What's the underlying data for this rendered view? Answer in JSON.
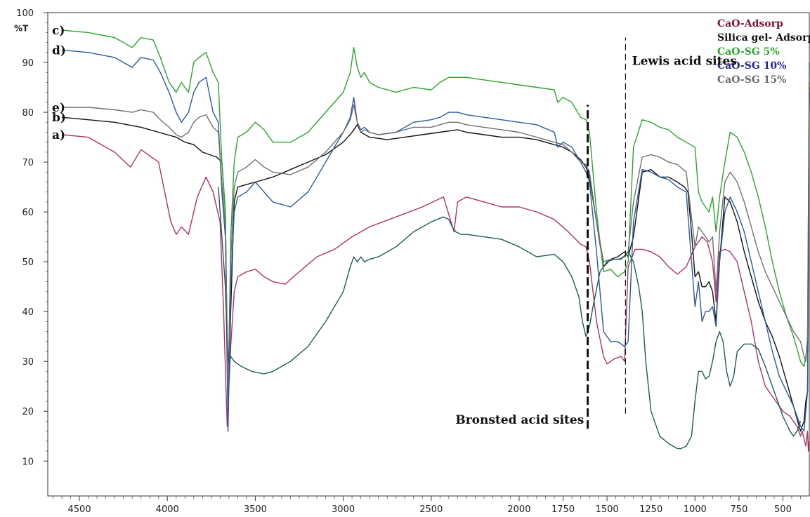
{
  "chart_data": {
    "type": "line",
    "title": "",
    "xlabel": "",
    "ylabel": "%T",
    "xlim": [
      4680,
      350
    ],
    "ylim": [
      3,
      100
    ],
    "x_reversed": true,
    "grid": false,
    "legend_position": "top-right",
    "x_ticks": [
      4500,
      4000,
      3500,
      3000,
      2500,
      2000,
      1750,
      1500,
      1250,
      1000,
      750,
      500
    ],
    "x_tick_labels": [
      "4500",
      "4000",
      "3500",
      "3000",
      "2500",
      "2000",
      "1750",
      "1500",
      "1250",
      "1000",
      "750",
      "500"
    ],
    "y_ticks": [
      10,
      20,
      30,
      40,
      50,
      60,
      70,
      80,
      90,
      100
    ],
    "y_tick_labels": [
      "10",
      "20",
      "30",
      "40",
      "50",
      "60",
      "70",
      "80",
      "90",
      "100"
    ],
    "legend": [
      {
        "label": "CaO-Adsorp",
        "color": "#7b1430"
      },
      {
        "label": "Silica gel- Adsorp",
        "color": "#111111"
      },
      {
        "label": "CaO-SG 5%",
        "color": "#2aa52a"
      },
      {
        "label": "CaO-SG 10%",
        "color": "#23238f"
      },
      {
        "label": "CaO-SG 15%",
        "color": "#6a6a6a"
      }
    ],
    "series": [
      {
        "tag": "a)",
        "color": "#b0306a",
        "x": [
          4600,
          4450,
          4300,
          4210,
          4150,
          4050,
          3980,
          3950,
          3920,
          3880,
          3830,
          3780,
          3740,
          3700,
          3680,
          3660,
          3640,
          3620,
          3600,
          3550,
          3500,
          3450,
          3400,
          3330,
          3250,
          3150,
          3050,
          2950,
          2850,
          2700,
          2550,
          2430,
          2370,
          2350,
          2300,
          2200,
          2100,
          2000,
          1900,
          1800,
          1720,
          1650,
          1620,
          1600,
          1560,
          1520,
          1500,
          1460,
          1420,
          1400,
          1380,
          1340,
          1300,
          1250,
          1200,
          1150,
          1100,
          1050,
          1000,
          960,
          930,
          900,
          880,
          860,
          830,
          800,
          760,
          720,
          680,
          640,
          600,
          550,
          500,
          460,
          420,
          400,
          390,
          370,
          360,
          355,
          350
        ],
        "y": [
          75.5,
          75,
          72,
          69,
          72.5,
          70,
          58,
          55.5,
          57,
          55.5,
          63,
          67,
          64,
          58,
          40,
          17,
          33,
          44,
          47,
          48,
          48.5,
          47,
          46,
          45.5,
          48,
          51,
          52.5,
          55,
          57,
          59,
          61,
          63,
          56,
          62,
          63,
          62,
          61,
          61,
          60,
          58.5,
          56,
          53.5,
          53,
          50,
          38,
          31,
          29.5,
          30.5,
          31,
          30,
          49,
          52.5,
          52.5,
          52,
          51,
          49,
          47.5,
          49,
          53,
          55,
          54,
          50,
          42,
          52,
          52.5,
          52,
          50,
          44,
          38,
          30,
          25,
          22.5,
          20,
          19,
          17,
          15,
          16,
          13,
          16,
          12,
          14
        ]
      },
      {
        "tag": "b)",
        "color": "#111111",
        "x": [
          4600,
          4450,
          4300,
          4150,
          4050,
          3950,
          3900,
          3850,
          3800,
          3760,
          3720,
          3690,
          3670,
          3655,
          3640,
          3620,
          3600,
          3550,
          3500,
          3450,
          3400,
          3300,
          3200,
          3100,
          3000,
          2950,
          2920,
          2900,
          2850,
          2750,
          2650,
          2550,
          2450,
          2350,
          2300,
          2200,
          2100,
          2000,
          1900,
          1800,
          1750,
          1700,
          1650,
          1620,
          1600,
          1560,
          1520,
          1480,
          1440,
          1400,
          1380,
          1350,
          1300,
          1250,
          1200,
          1150,
          1100,
          1060,
          1040,
          1020,
          1000,
          980,
          960,
          940,
          920,
          900,
          880,
          860,
          830,
          800,
          760,
          720,
          680,
          640,
          600,
          560,
          520,
          480,
          440,
          400,
          380,
          370,
          360,
          355,
          350
        ],
        "y": [
          79,
          78.5,
          78,
          77,
          76,
          75,
          74,
          73.5,
          72,
          71.5,
          71,
          70,
          60,
          20,
          40,
          62,
          65,
          65.5,
          66,
          66.5,
          67,
          68.5,
          70,
          71.5,
          74,
          76,
          77.5,
          76,
          75,
          74.5,
          75,
          75.5,
          76,
          76.5,
          76,
          75.5,
          75,
          75,
          74.5,
          73.5,
          73,
          72,
          70.5,
          69,
          67,
          58,
          49,
          50.5,
          51,
          52,
          51,
          55,
          68,
          68.5,
          67,
          67,
          66,
          65,
          64,
          56,
          47,
          48,
          45,
          45,
          46,
          44,
          38,
          50,
          63,
          62,
          58,
          52,
          47,
          42,
          38,
          35,
          31,
          26,
          21,
          16,
          18,
          22,
          24,
          50,
          85
        ]
      },
      {
        "tag": "c)",
        "color": "#2aa52a",
        "x": [
          4600,
          4450,
          4300,
          4200,
          4150,
          4080,
          4040,
          3990,
          3950,
          3920,
          3880,
          3850,
          3820,
          3780,
          3740,
          3710,
          3690,
          3670,
          3655,
          3640,
          3620,
          3600,
          3550,
          3500,
          3450,
          3400,
          3300,
          3200,
          3100,
          3000,
          2960,
          2940,
          2920,
          2900,
          2880,
          2850,
          2800,
          2700,
          2600,
          2500,
          2450,
          2400,
          2350,
          2300,
          2200,
          2100,
          2000,
          1900,
          1800,
          1780,
          1750,
          1700,
          1650,
          1620,
          1600,
          1560,
          1520,
          1480,
          1440,
          1400,
          1380,
          1350,
          1300,
          1250,
          1200,
          1150,
          1100,
          1050,
          1000,
          980,
          960,
          940,
          920,
          900,
          880,
          860,
          830,
          800,
          760,
          720,
          680,
          640,
          600,
          560,
          520,
          480,
          440,
          400,
          380,
          370,
          360,
          355,
          350
        ],
        "y": [
          96.5,
          96,
          95,
          93,
          95,
          94.5,
          91,
          86,
          84,
          86,
          84,
          90,
          91,
          92,
          88,
          86,
          70,
          60,
          20,
          55,
          70,
          75,
          76,
          78,
          76.5,
          74,
          74,
          76,
          80,
          84,
          88,
          93,
          89,
          87,
          88,
          86,
          85,
          84,
          85,
          84.5,
          86,
          87,
          87,
          87,
          86.5,
          86,
          85.5,
          85,
          84.5,
          82,
          83,
          82,
          79,
          78.5,
          76,
          60,
          48,
          48.5,
          47,
          48,
          50,
          73,
          78.5,
          78,
          77,
          76.5,
          75,
          74,
          73,
          64,
          62,
          61,
          60,
          63,
          56,
          63,
          70,
          76,
          75,
          72,
          68,
          63,
          57,
          50,
          44,
          39,
          35,
          30,
          29,
          31,
          34,
          60,
          90
        ]
      },
      {
        "tag": "d)",
        "color": "#2a5aa0",
        "x": [
          4600,
          4450,
          4300,
          4200,
          4150,
          4080,
          4040,
          3990,
          3950,
          3920,
          3880,
          3850,
          3820,
          3780,
          3740,
          3710,
          3690,
          3670,
          3655,
          3640,
          3620,
          3600,
          3550,
          3500,
          3450,
          3400,
          3300,
          3200,
          3100,
          3000,
          2960,
          2940,
          2920,
          2900,
          2880,
          2850,
          2800,
          2700,
          2600,
          2500,
          2450,
          2400,
          2350,
          2300,
          2200,
          2100,
          2000,
          1900,
          1800,
          1780,
          1750,
          1700,
          1650,
          1620,
          1600,
          1560,
          1520,
          1480,
          1440,
          1400,
          1380,
          1350,
          1300,
          1250,
          1200,
          1150,
          1100,
          1050,
          1000,
          980,
          960,
          940,
          920,
          900,
          880,
          860,
          830,
          800,
          760,
          720,
          680,
          640,
          600,
          560,
          520,
          480,
          440,
          400,
          380,
          370,
          360,
          355,
          350
        ],
        "y": [
          92.5,
          92,
          91,
          89,
          91,
          90.5,
          88,
          84,
          80,
          78,
          80,
          84,
          86,
          87,
          80,
          78,
          64,
          55,
          16,
          45,
          60,
          63,
          64,
          66,
          64,
          62,
          61,
          64,
          70,
          76,
          79,
          83,
          78,
          76.5,
          77,
          76,
          75.5,
          76,
          78,
          78.5,
          79,
          80,
          80,
          79.5,
          79,
          78.5,
          78,
          77.5,
          76,
          73,
          74,
          73,
          70,
          68,
          66,
          52,
          36,
          34,
          34,
          33,
          34,
          58,
          68.5,
          68,
          67,
          66.5,
          65,
          64,
          41,
          46,
          38,
          40,
          40,
          41,
          37,
          50,
          60,
          63,
          60,
          56,
          50,
          44,
          38,
          32,
          27,
          24,
          21,
          17,
          16,
          20,
          24,
          50,
          84
        ]
      },
      {
        "tag": "e)",
        "color": "#707070",
        "x": [
          4600,
          4450,
          4300,
          4200,
          4150,
          4080,
          4040,
          3990,
          3950,
          3920,
          3880,
          3850,
          3820,
          3780,
          3740,
          3710,
          3690,
          3670,
          3655,
          3640,
          3620,
          3600,
          3550,
          3500,
          3450,
          3400,
          3300,
          3200,
          3100,
          3000,
          2960,
          2940,
          2920,
          2900,
          2880,
          2850,
          2800,
          2700,
          2600,
          2500,
          2450,
          2400,
          2350,
          2300,
          2200,
          2100,
          2000,
          1900,
          1800,
          1750,
          1700,
          1650,
          1620,
          1600,
          1560,
          1520,
          1480,
          1440,
          1400,
          1380,
          1350,
          1300,
          1250,
          1200,
          1150,
          1100,
          1050,
          1000,
          980,
          960,
          940,
          920,
          900,
          880,
          860,
          830,
          800,
          760,
          720,
          680,
          640,
          600,
          560,
          520,
          480,
          440,
          400,
          380,
          370,
          360,
          355,
          350
        ],
        "y": [
          81,
          81,
          80.5,
          80,
          80.5,
          80,
          78.5,
          77,
          75.5,
          75,
          76,
          78,
          79,
          79.5,
          77,
          76,
          66,
          57,
          25,
          50,
          65,
          68,
          69,
          70.5,
          69,
          68,
          67.5,
          69,
          72,
          76,
          78.5,
          81.5,
          78,
          76,
          76.5,
          76,
          75.5,
          76,
          77,
          77,
          77.5,
          78,
          78,
          77.5,
          77,
          76.5,
          76,
          75,
          74,
          73.5,
          72,
          70,
          69.5,
          68,
          58,
          50,
          50.5,
          50.5,
          51,
          52,
          62,
          71,
          71.5,
          71,
          70,
          69.5,
          68,
          53,
          57,
          56,
          55,
          54,
          55,
          44,
          56,
          66,
          68,
          66,
          62,
          57,
          52,
          48,
          45,
          42,
          39,
          36,
          34,
          31,
          30,
          35,
          60,
          86
        ]
      },
      {
        "tag": "",
        "color": "#1e5a5a",
        "x": [
          3710,
          3690,
          3670,
          3660,
          3650,
          3640,
          3620,
          3580,
          3520,
          3450,
          3400,
          3300,
          3200,
          3100,
          3000,
          2960,
          2940,
          2920,
          2900,
          2880,
          2850,
          2800,
          2700,
          2600,
          2500,
          2430,
          2400,
          2380,
          2360,
          2330,
          2300,
          2200,
          2100,
          2000,
          1900,
          1800,
          1750,
          1700,
          1660,
          1640,
          1620,
          1600,
          1580,
          1540,
          1500,
          1460,
          1420,
          1380,
          1350,
          1320,
          1300,
          1280,
          1250,
          1200,
          1150,
          1100,
          1080,
          1050,
          1020,
          1000,
          980,
          960,
          940,
          920,
          900,
          880,
          860,
          840,
          820,
          800,
          780,
          760,
          720,
          680,
          640,
          600,
          560,
          520,
          500,
          480,
          460,
          440,
          420,
          400
        ],
        "y": [
          65,
          55,
          45,
          33,
          30,
          31,
          30,
          29,
          28,
          27.5,
          28,
          30,
          33,
          38,
          44,
          49,
          51,
          50,
          51,
          50,
          50.5,
          51,
          53,
          56,
          58,
          59,
          58.5,
          57,
          56,
          55.5,
          55.5,
          55,
          54.5,
          53,
          51,
          51.5,
          50,
          47,
          43,
          38,
          35,
          37,
          41,
          48,
          50,
          50.5,
          50.5,
          52,
          50,
          45,
          40,
          30,
          20,
          15,
          13.5,
          12.5,
          12.5,
          13,
          15,
          22,
          28,
          28,
          26.5,
          27,
          30,
          34,
          36,
          34,
          28,
          25,
          27,
          32,
          33.5,
          33.5,
          32.5,
          29,
          25,
          21,
          19,
          17.5,
          16,
          15,
          16,
          18
        ]
      }
    ],
    "annotations": [
      {
        "text": "Lewis acid sites",
        "x": 1390,
        "y": 89.5
      },
      {
        "text": "Bronsted acid sites",
        "x": 1615,
        "y": 17.5
      }
    ],
    "reference_lines": [
      {
        "x": 1395,
        "y_from": 19.5,
        "y_to": 95,
        "style": "dashed",
        "weight": "thin"
      },
      {
        "x": 1610,
        "y_from": 16.5,
        "y_to": 81.5,
        "style": "dashed",
        "weight": "thick"
      }
    ]
  }
}
